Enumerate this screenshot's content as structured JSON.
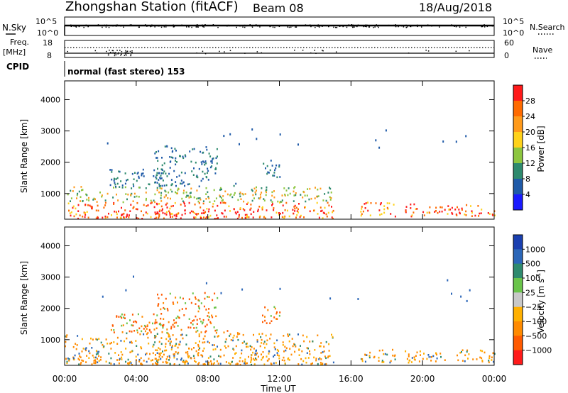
{
  "header": {
    "title": "Zhongshan Station (fitACF)",
    "beam": "Beam 08",
    "date": "18/Aug/2018"
  },
  "panels": {
    "nsky": {
      "left_label": "N.Sky",
      "left_ticks": [
        "10^5",
        "10^0"
      ],
      "right_ticks": [
        "10^5",
        "10^0"
      ],
      "right_label": "N.Search"
    },
    "freq": {
      "left_label_1": "Freq.",
      "left_label_2": "[MHz]",
      "left_ticks": [
        "18",
        "8"
      ],
      "right_ticks": [
        "60",
        "0"
      ],
      "right_label": "Nave"
    },
    "cpid": {
      "label": "CPID",
      "value": "normal (fast stereo) 153"
    }
  },
  "colors": {
    "power": [
      "#1a1aff",
      "#1f5aa8",
      "#2e8a6e",
      "#8dc63f",
      "#ffd21a",
      "#ff9a1a",
      "#ff6a00",
      "#ff1a1a"
    ],
    "velocity": [
      "#1a3fb0",
      "#2b66b8",
      "#2e8a6e",
      "#6ac44a",
      "#c8c8c8",
      "#ffb000",
      "#ff8a00",
      "#ff5a00",
      "#ff1a1a"
    ]
  },
  "chart_data": [
    {
      "type": "line",
      "name": "N.Sky / N.Search",
      "x_range_hours": [
        0,
        24
      ],
      "left_ticks": [
        "10^5",
        "10^0"
      ],
      "right_ticks": [
        "10^5",
        "10^0"
      ],
      "note_series": "near-constant high noise level across the day"
    },
    {
      "type": "line",
      "name": "Freq / Nave",
      "left_ticks": [
        "18",
        "8"
      ],
      "right_ticks": [
        "60",
        "0"
      ],
      "freq_mhz_approx": 10,
      "nave_approx": 40
    },
    {
      "type": "heatmap",
      "title": "Power [dB]",
      "xlabel": "Time UT",
      "ylabel": "Slant Range [km]",
      "x_ticks": [
        "00:00",
        "04:00",
        "08:00",
        "12:00",
        "16:00",
        "20:00",
        "00:00"
      ],
      "xlim_hours": [
        0,
        24
      ],
      "y_ticks": [
        "1000",
        "2000",
        "3000",
        "4000"
      ],
      "ylim_km": [
        180,
        4600
      ],
      "colorbar_label": "Power [dB]",
      "colorbar_ticks": [
        "4",
        "8",
        "12",
        "16",
        "20",
        "24",
        "28"
      ],
      "colorbar_range": [
        0,
        32
      ],
      "scatter_regions": [
        {
          "t0": 0.0,
          "t1": 1.0,
          "r0": 180,
          "r1": 1200
        },
        {
          "t0": 1.0,
          "t1": 5.5,
          "r0": 180,
          "r1": 1050
        },
        {
          "t0": 2.5,
          "t1": 5.5,
          "r0": 1150,
          "r1": 1800
        },
        {
          "t0": 5.0,
          "t1": 8.5,
          "r0": 180,
          "r1": 2500
        },
        {
          "t0": 8.5,
          "t1": 10.5,
          "r0": 180,
          "r1": 1300
        },
        {
          "t0": 10.5,
          "t1": 15.0,
          "r0": 180,
          "r1": 1200
        },
        {
          "t0": 11.0,
          "t1": 12.0,
          "r0": 1500,
          "r1": 2100
        },
        {
          "t0": 16.5,
          "t1": 18.5,
          "r0": 250,
          "r1": 700
        },
        {
          "t0": 19.0,
          "t1": 24.0,
          "r0": 250,
          "r1": 650
        }
      ]
    },
    {
      "type": "heatmap",
      "title": "Velocity [m s-1]",
      "xlabel": "Time UT",
      "ylabel": "Slant Range [km]",
      "x_ticks": [
        "00:00",
        "04:00",
        "08:00",
        "12:00",
        "16:00",
        "20:00",
        "00:00"
      ],
      "xlim_hours": [
        0,
        24
      ],
      "y_ticks": [
        "1000",
        "2000",
        "3000",
        "4000"
      ],
      "ylim_km": [
        180,
        4600
      ],
      "colorbar_label": "Velocity [m s⁻¹]",
      "colorbar_ticks": [
        "1000",
        "500",
        "100",
        "25",
        "−25",
        "−100",
        "−500",
        "−1000"
      ],
      "dominant_velocity": "negative (orange, -100 to -500 m/s)"
    }
  ],
  "axes": {
    "ylabel": "Slant Range [km]",
    "xlabel": "Time UT",
    "y_ticks": [
      "1000",
      "2000",
      "3000",
      "4000"
    ],
    "x_ticks": [
      "00:00",
      "04:00",
      "08:00",
      "12:00",
      "16:00",
      "20:00",
      "00:00"
    ],
    "power_label": "Power [dB]",
    "power_ticks": [
      "4",
      "8",
      "12",
      "16",
      "20",
      "24",
      "28"
    ],
    "velocity_label_main": "Velocity [m s",
    "velocity_label_sup": "-1",
    "velocity_label_end": "]",
    "velocity_ticks": [
      "1000",
      "500",
      "100",
      "25",
      "−25",
      "−100",
      "−500",
      "−1000"
    ]
  }
}
